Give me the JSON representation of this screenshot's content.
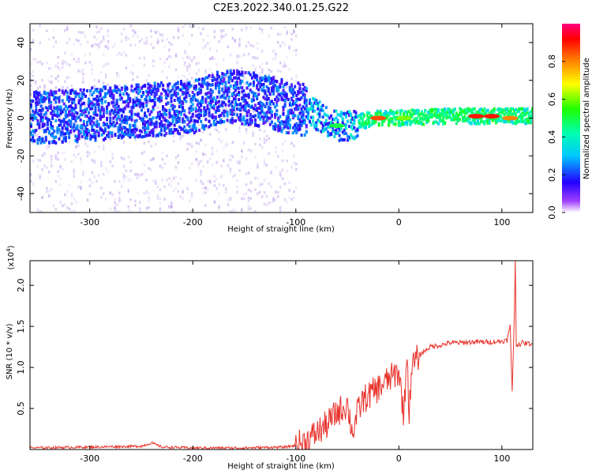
{
  "title": "C2E3.2022.340.01.25.G22",
  "colors": {
    "snr_line": "#e8312a",
    "background": "#ffffff",
    "spectrum_low": "#c9b6f0",
    "spectrum_mid": "#5a10e6"
  },
  "chart_data": [
    {
      "type": "heatmap",
      "xlabel": "Height of straight line (km)",
      "ylabel": "Frequency (Hz)",
      "xlim": [
        -358,
        130
      ],
      "ylim": [
        -50,
        50
      ],
      "xticks": [
        -300,
        -200,
        -100,
        0,
        100
      ],
      "xtick_labels": [
        "-300",
        "-200",
        "-100",
        "0",
        "100"
      ],
      "yticks": [
        -40,
        -20,
        0,
        20,
        40
      ],
      "ytick_labels": [
        "-40",
        "-20",
        "0",
        "20",
        "40"
      ],
      "colorbar": {
        "label": "Normalized spectral amplitude",
        "range": [
          0.0,
          1.0
        ],
        "ticks": [
          0.0,
          0.2,
          0.4,
          0.6,
          0.8
        ],
        "tick_labels": [
          "0.0",
          "0.2",
          "0.4",
          "0.6",
          "0.8"
        ],
        "colormap": "rainbow"
      },
      "ridge": [
        {
          "x": -350,
          "f": 0
        },
        {
          "x": -300,
          "f": 2
        },
        {
          "x": -250,
          "f": 4
        },
        {
          "x": -200,
          "f": 6
        },
        {
          "x": -170,
          "f": 12
        },
        {
          "x": -140,
          "f": 10
        },
        {
          "x": -110,
          "f": 6
        },
        {
          "x": -90,
          "f": 4
        },
        {
          "x": -75,
          "f": 0
        },
        {
          "x": -60,
          "f": -4
        },
        {
          "x": -50,
          "f": -4
        },
        {
          "x": -40,
          "f": -2
        },
        {
          "x": -20,
          "f": 0
        },
        {
          "x": 0,
          "f": 0
        },
        {
          "x": 50,
          "f": 1
        },
        {
          "x": 100,
          "f": 1
        },
        {
          "x": 130,
          "f": 1
        }
      ],
      "peaks": [
        {
          "x": -60,
          "f": -4,
          "amp": 0.5
        },
        {
          "x": -20,
          "f": 0,
          "amp": 0.85
        },
        {
          "x": 5,
          "f": 0,
          "amp": 0.6
        },
        {
          "x": 75,
          "f": 1,
          "amp": 0.9
        },
        {
          "x": 90,
          "f": 1,
          "amp": 0.9
        },
        {
          "x": 108,
          "f": 0,
          "amp": 0.8
        }
      ]
    },
    {
      "type": "line",
      "xlabel": "Height of straight line (km)",
      "ylabel": "SNR (10 * v/v)",
      "yscale_label": "(x10",
      "yscale_exp": "4",
      "yscale_close": ")",
      "xlim": [
        -358,
        130
      ],
      "ylim": [
        0,
        2.3
      ],
      "xticks": [
        -300,
        -200,
        -100,
        0,
        100
      ],
      "xtick_labels": [
        "-300",
        "-200",
        "-100",
        "0",
        "100"
      ],
      "yticks": [
        0.5,
        1.0,
        1.5,
        2.0
      ],
      "ytick_labels": [
        "0.5",
        "1.0",
        "1.5",
        "2.0"
      ],
      "series": [
        {
          "x": [
            -358,
            -300,
            -250,
            -240,
            -230,
            -200,
            -150,
            -110,
            -100,
            -90,
            -80,
            -70,
            -60,
            -50,
            -45,
            -40,
            -35,
            -30,
            -25,
            -20,
            -15,
            -10,
            -5,
            0,
            5,
            8,
            10,
            12,
            15,
            20,
            30,
            40,
            50,
            60,
            70,
            80,
            90,
            100,
            105,
            108,
            110,
            112,
            113,
            114,
            116,
            118,
            120,
            125,
            130
          ],
          "y": [
            0.02,
            0.03,
            0.04,
            0.08,
            0.03,
            0.02,
            0.02,
            0.03,
            0.05,
            0.1,
            0.2,
            0.3,
            0.45,
            0.55,
            0.2,
            0.45,
            0.6,
            0.65,
            0.7,
            0.75,
            0.8,
            0.85,
            0.9,
            0.95,
            0.4,
            1.25,
            0.35,
            1.0,
            1.05,
            1.15,
            1.25,
            1.27,
            1.3,
            1.3,
            1.31,
            1.31,
            1.31,
            1.32,
            1.33,
            1.5,
            0.72,
            1.6,
            2.3,
            1.25,
            1.3,
            1.28,
            1.3,
            1.29,
            1.29
          ]
        }
      ]
    }
  ]
}
